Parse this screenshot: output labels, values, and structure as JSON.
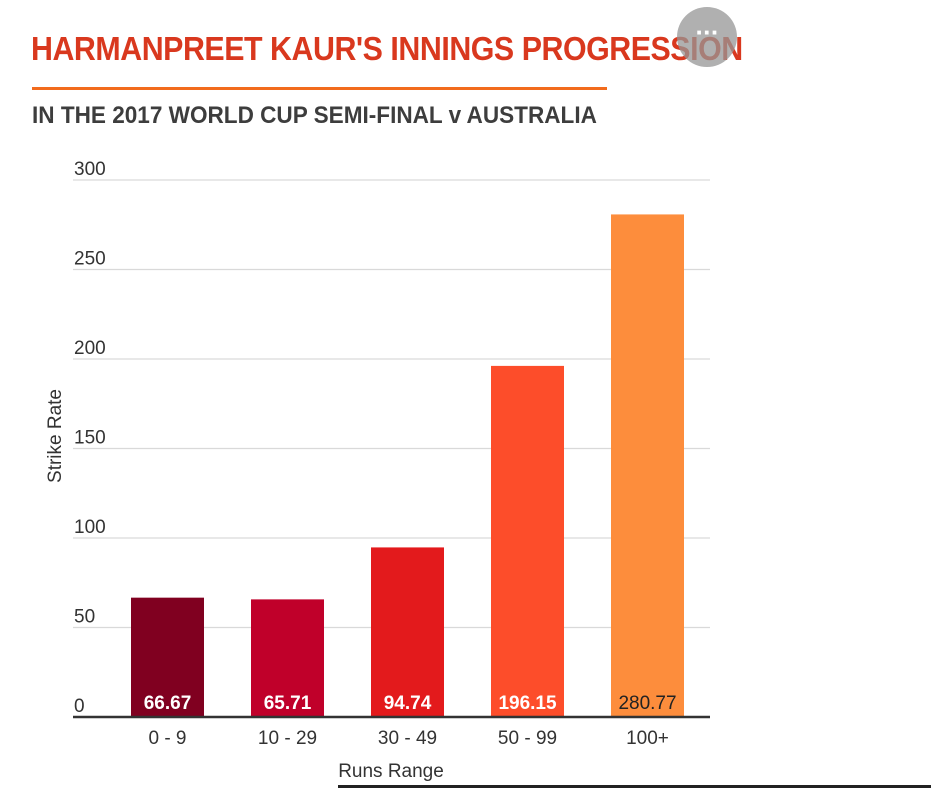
{
  "header": {
    "title": "HARMANPREET KAUR'S INNINGS PROGRESSION",
    "subtitle": "IN THE 2017 WORLD CUP SEMI-FINAL v AUSTRALIA",
    "more_button_label": "···"
  },
  "colors": {
    "title": "#d9381e",
    "title_rule": "#f26b1d",
    "subtitle": "#3d3d3d",
    "gridline": "#d9d9d9",
    "axis": "#333333",
    "tick_label": "#333333"
  },
  "chart_data": {
    "type": "bar",
    "title": "HARMANPREET KAUR'S INNINGS PROGRESSION",
    "subtitle": "IN THE 2017 WORLD CUP SEMI-FINAL v AUSTRALIA",
    "xlabel": "Runs Range",
    "ylabel": "Strike Rate",
    "categories": [
      "0 - 9",
      "10 - 29",
      "30 - 49",
      "50 - 99",
      "100+"
    ],
    "values": [
      66.67,
      65.71,
      94.74,
      196.15,
      280.77
    ],
    "value_labels": [
      "66.67",
      "65.71",
      "94.74",
      "196.15",
      "280.77"
    ],
    "bar_colors": [
      "#800020",
      "#c0002a",
      "#e31a1c",
      "#fd4d2a",
      "#fd8d3c"
    ],
    "value_label_colors": [
      "#ffffff",
      "#ffffff",
      "#ffffff",
      "#ffffff",
      "#222222"
    ],
    "ylim": [
      0,
      300
    ],
    "yticks": [
      0,
      50,
      100,
      150,
      200,
      250,
      300
    ],
    "grid": true,
    "legend": "none"
  }
}
